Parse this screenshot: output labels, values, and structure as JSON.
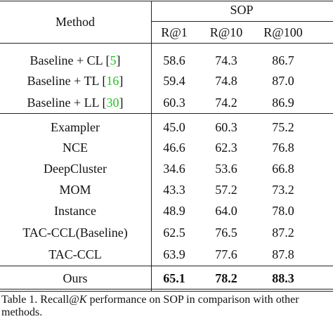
{
  "table": {
    "header": {
      "method": "Method",
      "group": "SOP",
      "columns": [
        "R@1",
        "R@10",
        "R@100"
      ]
    },
    "sections": [
      [
        {
          "method": "Baseline + CL",
          "cite": [
            "[",
            "5",
            "]"
          ],
          "values": [
            "58.6",
            "74.3",
            "86.7"
          ]
        },
        {
          "method": "Baseline + TL",
          "cite": [
            "[",
            "16",
            "]"
          ],
          "values": [
            "59.4",
            "74.8",
            "87.0"
          ]
        },
        {
          "method": "Baseline + LL",
          "cite": [
            "[",
            "30",
            "]"
          ],
          "values": [
            "60.3",
            "74.2",
            "86.9"
          ]
        }
      ],
      [
        {
          "method": "Exampler",
          "values": [
            "45.0",
            "60.3",
            "75.2"
          ]
        },
        {
          "method": "NCE",
          "values": [
            "46.6",
            "62.3",
            "76.8"
          ]
        },
        {
          "method": "DeepCluster",
          "values": [
            "34.6",
            "53.6",
            "66.8"
          ]
        },
        {
          "method": "MOM",
          "values": [
            "43.3",
            "57.2",
            "73.2"
          ]
        },
        {
          "method": "Instance",
          "values": [
            "48.9",
            "64.0",
            "78.0"
          ]
        },
        {
          "method": "TAC-CCL(Baseline)",
          "values": [
            "62.5",
            "76.5",
            "87.2"
          ]
        },
        {
          "method": "TAC-CCL",
          "values": [
            "63.9",
            "77.6",
            "87.8"
          ]
        }
      ],
      [
        {
          "method": "Ours",
          "values": [
            "65.1",
            "78.2",
            "88.3"
          ],
          "bold": true
        }
      ]
    ]
  },
  "caption": {
    "prefix": "Table 1. Recall@",
    "k": "K",
    "suffix": " performance on SOP in comparison with other methods."
  }
}
